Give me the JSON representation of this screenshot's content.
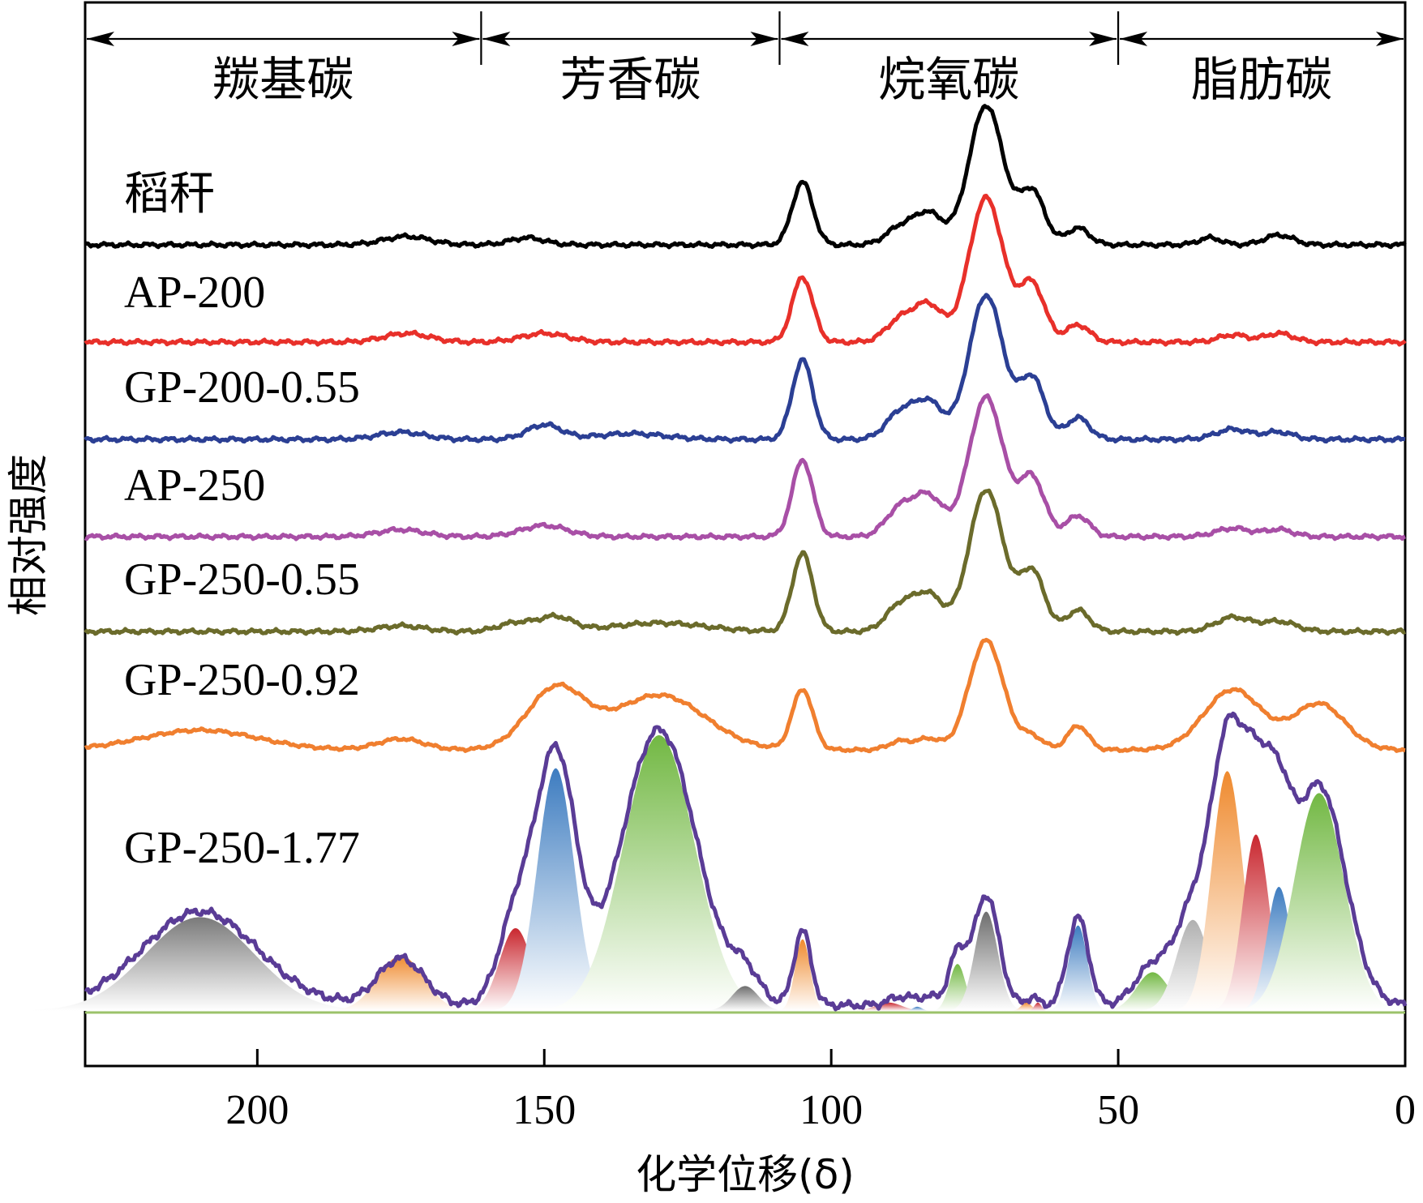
{
  "chart_data": {
    "type": "line",
    "title": "",
    "xlabel": "化学位移(δ)",
    "ylabel": "相对强度",
    "xlim": [
      230,
      0
    ],
    "xticks": [
      200,
      150,
      100,
      50,
      0
    ],
    "regions": [
      {
        "label": "羰基碳",
        "from": 230,
        "to": 161
      },
      {
        "label": "芳香碳",
        "from": 161,
        "to": 109
      },
      {
        "label": "烷氧碳",
        "from": 109,
        "to": 50
      },
      {
        "label": "脂肪碳",
        "from": 50,
        "to": 0
      }
    ],
    "series": [
      {
        "name": "稻秆",
        "color": "#000000",
        "baseline": 0,
        "peaks": [
          {
            "c": 174,
            "h": 0.06,
            "w": 4
          },
          {
            "c": 153,
            "h": 0.05,
            "w": 3
          },
          {
            "c": 105,
            "h": 0.45,
            "w": 1.8
          },
          {
            "c": 88,
            "h": 0.12,
            "w": 2.5
          },
          {
            "c": 83,
            "h": 0.22,
            "w": 2.5
          },
          {
            "c": 73,
            "h": 1.0,
            "w": 3
          },
          {
            "c": 65,
            "h": 0.38,
            "w": 2.2
          },
          {
            "c": 57,
            "h": 0.12,
            "w": 2
          },
          {
            "c": 34,
            "h": 0.05,
            "w": 2
          },
          {
            "c": 22,
            "h": 0.07,
            "w": 2.5
          }
        ]
      },
      {
        "name": "AP-200",
        "color": "#e8302a",
        "baseline": 0,
        "peaks": [
          {
            "c": 174,
            "h": 0.06,
            "w": 4
          },
          {
            "c": 150,
            "h": 0.06,
            "w": 4
          },
          {
            "c": 105,
            "h": 0.45,
            "w": 1.8
          },
          {
            "c": 88,
            "h": 0.15,
            "w": 2.5
          },
          {
            "c": 83,
            "h": 0.25,
            "w": 2.5
          },
          {
            "c": 73,
            "h": 1.0,
            "w": 3
          },
          {
            "c": 65,
            "h": 0.4,
            "w": 2.2
          },
          {
            "c": 57,
            "h": 0.12,
            "w": 2
          },
          {
            "c": 30,
            "h": 0.05,
            "w": 2.5
          },
          {
            "c": 22,
            "h": 0.06,
            "w": 2.5
          }
        ]
      },
      {
        "name": "GP-200-0.55",
        "color": "#2b3f94",
        "baseline": 0,
        "peaks": [
          {
            "c": 175,
            "h": 0.05,
            "w": 4
          },
          {
            "c": 150,
            "h": 0.1,
            "w": 3
          },
          {
            "c": 135,
            "h": 0.04,
            "w": 6
          },
          {
            "c": 105,
            "h": 0.55,
            "w": 1.8
          },
          {
            "c": 88,
            "h": 0.18,
            "w": 2.5
          },
          {
            "c": 83,
            "h": 0.25,
            "w": 2.5
          },
          {
            "c": 73,
            "h": 1.0,
            "w": 3
          },
          {
            "c": 65,
            "h": 0.42,
            "w": 2.2
          },
          {
            "c": 57,
            "h": 0.15,
            "w": 2
          },
          {
            "c": 30,
            "h": 0.07,
            "w": 3
          },
          {
            "c": 22,
            "h": 0.05,
            "w": 2.5
          }
        ]
      },
      {
        "name": "AP-250",
        "color": "#a84fa6",
        "baseline": 0,
        "peaks": [
          {
            "c": 175,
            "h": 0.05,
            "w": 4
          },
          {
            "c": 150,
            "h": 0.08,
            "w": 4
          },
          {
            "c": 105,
            "h": 0.55,
            "w": 1.8
          },
          {
            "c": 88,
            "h": 0.2,
            "w": 2.5
          },
          {
            "c": 83,
            "h": 0.28,
            "w": 2.5
          },
          {
            "c": 73,
            "h": 1.0,
            "w": 3
          },
          {
            "c": 65,
            "h": 0.42,
            "w": 2.2
          },
          {
            "c": 57,
            "h": 0.15,
            "w": 2
          },
          {
            "c": 30,
            "h": 0.06,
            "w": 3
          },
          {
            "c": 22,
            "h": 0.05,
            "w": 2.5
          }
        ]
      },
      {
        "name": "GP-250-0.55",
        "color": "#6b6b2b",
        "baseline": 0,
        "peaks": [
          {
            "c": 175,
            "h": 0.04,
            "w": 4
          },
          {
            "c": 155,
            "h": 0.06,
            "w": 3
          },
          {
            "c": 148,
            "h": 0.1,
            "w": 3
          },
          {
            "c": 130,
            "h": 0.06,
            "w": 8
          },
          {
            "c": 105,
            "h": 0.55,
            "w": 1.8
          },
          {
            "c": 88,
            "h": 0.18,
            "w": 2.5
          },
          {
            "c": 83,
            "h": 0.25,
            "w": 2.5
          },
          {
            "c": 73,
            "h": 1.0,
            "w": 3
          },
          {
            "c": 65,
            "h": 0.42,
            "w": 2.2
          },
          {
            "c": 57,
            "h": 0.15,
            "w": 2
          },
          {
            "c": 30,
            "h": 0.1,
            "w": 3
          },
          {
            "c": 22,
            "h": 0.07,
            "w": 3
          }
        ]
      },
      {
        "name": "GP-250-0.92",
        "color": "#f07f2f",
        "baseline": 0,
        "peaks": [
          {
            "c": 210,
            "h": 0.18,
            "w": 10
          },
          {
            "c": 175,
            "h": 0.1,
            "w": 4
          },
          {
            "c": 148,
            "h": 0.55,
            "w": 5
          },
          {
            "c": 130,
            "h": 0.5,
            "w": 8
          },
          {
            "c": 105,
            "h": 0.55,
            "w": 1.8
          },
          {
            "c": 88,
            "h": 0.08,
            "w": 2
          },
          {
            "c": 83,
            "h": 0.1,
            "w": 2
          },
          {
            "c": 73,
            "h": 1.0,
            "w": 3
          },
          {
            "c": 65,
            "h": 0.12,
            "w": 2
          },
          {
            "c": 57,
            "h": 0.22,
            "w": 1.8
          },
          {
            "c": 30,
            "h": 0.55,
            "w": 5
          },
          {
            "c": 15,
            "h": 0.42,
            "w": 4.5
          }
        ]
      },
      {
        "name": "GP-250-1.77",
        "color": "#5a3c96",
        "baseline": 0,
        "peaks": [
          {
            "c": 210,
            "h": 0.34,
            "w": 10
          },
          {
            "c": 175,
            "h": 0.17,
            "w": 4
          },
          {
            "c": 155,
            "h": 0.3,
            "w": 3
          },
          {
            "c": 148,
            "h": 0.9,
            "w": 3.5
          },
          {
            "c": 130,
            "h": 1.0,
            "w": 6.5
          },
          {
            "c": 115,
            "h": 0.1,
            "w": 2.5
          },
          {
            "c": 105,
            "h": 0.27,
            "w": 1.5
          },
          {
            "c": 88,
            "h": 0.03,
            "w": 2
          },
          {
            "c": 83,
            "h": 0.03,
            "w": 2
          },
          {
            "c": 78,
            "h": 0.18,
            "w": 1.5
          },
          {
            "c": 73,
            "h": 0.4,
            "w": 2.2
          },
          {
            "c": 65,
            "h": 0.03,
            "w": 1
          },
          {
            "c": 57,
            "h": 0.32,
            "w": 1.8
          },
          {
            "c": 44,
            "h": 0.14,
            "w": 3
          },
          {
            "c": 37,
            "h": 0.33,
            "w": 3
          },
          {
            "c": 31,
            "h": 0.9,
            "w": 2.8
          },
          {
            "c": 26,
            "h": 0.65,
            "w": 2.5
          },
          {
            "c": 22,
            "h": 0.47,
            "w": 2.3
          },
          {
            "c": 15,
            "h": 0.8,
            "w": 4.5
          }
        ]
      }
    ],
    "deconvolution": {
      "of": "GP-250-1.77",
      "components": [
        {
          "c": 210,
          "h": 0.34,
          "w": 9.5,
          "color": "#7a7a7a"
        },
        {
          "c": 175,
          "h": 0.2,
          "w": 4,
          "color": "#ef8a2e"
        },
        {
          "c": 155,
          "h": 0.3,
          "w": 2.8,
          "color": "#c9272f"
        },
        {
          "c": 148,
          "h": 0.88,
          "w": 3.2,
          "color": "#3d7cc0"
        },
        {
          "c": 130,
          "h": 1.0,
          "w": 6.2,
          "color": "#72b843"
        },
        {
          "c": 115,
          "h": 0.09,
          "w": 2.3,
          "color": "#6e6e6e"
        },
        {
          "c": 105,
          "h": 0.26,
          "w": 1.3,
          "color": "#ef8a2e"
        },
        {
          "c": 90,
          "h": 0.03,
          "w": 2.3,
          "color": "#c9272f"
        },
        {
          "c": 85,
          "h": 0.015,
          "w": 0.8,
          "color": "#3d7cc0"
        },
        {
          "c": 78,
          "h": 0.17,
          "w": 1.4,
          "color": "#72b843"
        },
        {
          "c": 73,
          "h": 0.36,
          "w": 2.0,
          "color": "#6e6e6e"
        },
        {
          "c": 66,
          "h": 0.03,
          "w": 0.9,
          "color": "#ef8a2e"
        },
        {
          "c": 64,
          "h": 0.03,
          "w": 0.6,
          "color": "#c9272f"
        },
        {
          "c": 57,
          "h": 0.31,
          "w": 1.6,
          "color": "#3d7cc0"
        },
        {
          "c": 44,
          "h": 0.14,
          "w": 2.8,
          "color": "#72b843"
        },
        {
          "c": 37,
          "h": 0.33,
          "w": 2.8,
          "color": "#b0b0b0"
        },
        {
          "c": 31,
          "h": 0.87,
          "w": 2.7,
          "color": "#ef8a2e"
        },
        {
          "c": 26,
          "h": 0.64,
          "w": 2.3,
          "color": "#c9272f"
        },
        {
          "c": 22,
          "h": 0.45,
          "w": 2.1,
          "color": "#3d7cc0"
        },
        {
          "c": 15,
          "h": 0.79,
          "w": 4.3,
          "color": "#72b843"
        }
      ]
    },
    "grid": false
  }
}
